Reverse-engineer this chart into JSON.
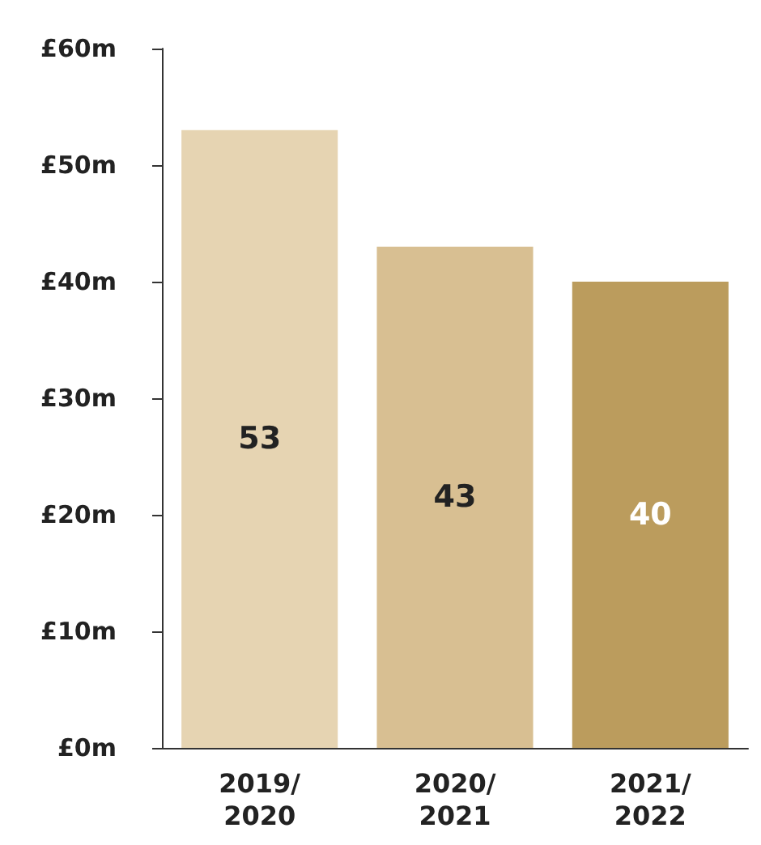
{
  "chart_data": {
    "type": "bar",
    "categories": [
      "2019/\n2020",
      "2020/\n2021",
      "2021/\n2022"
    ],
    "values": [
      53,
      43,
      40
    ],
    "colors": [
      "#e6d4b2",
      "#d8bf92",
      "#bb9c5d"
    ],
    "ylim": [
      0,
      60
    ],
    "yticks": [
      {
        "value": 0,
        "label": "£0m"
      },
      {
        "value": 10,
        "label": "£10m"
      },
      {
        "value": 20,
        "label": "£20m"
      },
      {
        "value": 30,
        "label": "£30m"
      },
      {
        "value": 40,
        "label": "£40m"
      },
      {
        "value": 50,
        "label": "£50m"
      },
      {
        "value": 60,
        "label": "£60m"
      }
    ],
    "data_labels": true
  }
}
